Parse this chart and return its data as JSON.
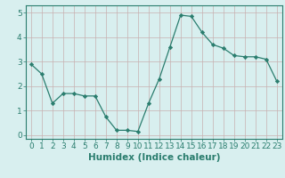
{
  "title": "",
  "xlabel": "Humidex (Indice chaleur)",
  "ylabel": "",
  "x": [
    0,
    1,
    2,
    3,
    4,
    5,
    6,
    7,
    8,
    9,
    10,
    11,
    12,
    13,
    14,
    15,
    16,
    17,
    18,
    19,
    20,
    21,
    22,
    23
  ],
  "y": [
    2.9,
    2.5,
    1.3,
    1.7,
    1.7,
    1.6,
    1.6,
    0.75,
    0.2,
    0.2,
    0.15,
    1.3,
    2.3,
    3.6,
    4.9,
    4.85,
    4.2,
    3.7,
    3.55,
    3.25,
    3.2,
    3.2,
    3.1,
    2.2
  ],
  "line_color": "#2a7d6e",
  "marker": "D",
  "marker_size": 2.2,
  "bg_color": "#d8efef",
  "grid_color": "#c8b0b0",
  "ylim": [
    -0.15,
    5.3
  ],
  "xlim": [
    -0.5,
    23.5
  ],
  "yticks": [
    0,
    1,
    2,
    3,
    4,
    5
  ],
  "xticks": [
    0,
    1,
    2,
    3,
    4,
    5,
    6,
    7,
    8,
    9,
    10,
    11,
    12,
    13,
    14,
    15,
    16,
    17,
    18,
    19,
    20,
    21,
    22,
    23
  ],
  "tick_fontsize": 6.5,
  "xlabel_fontsize": 7.5,
  "linewidth": 0.9
}
